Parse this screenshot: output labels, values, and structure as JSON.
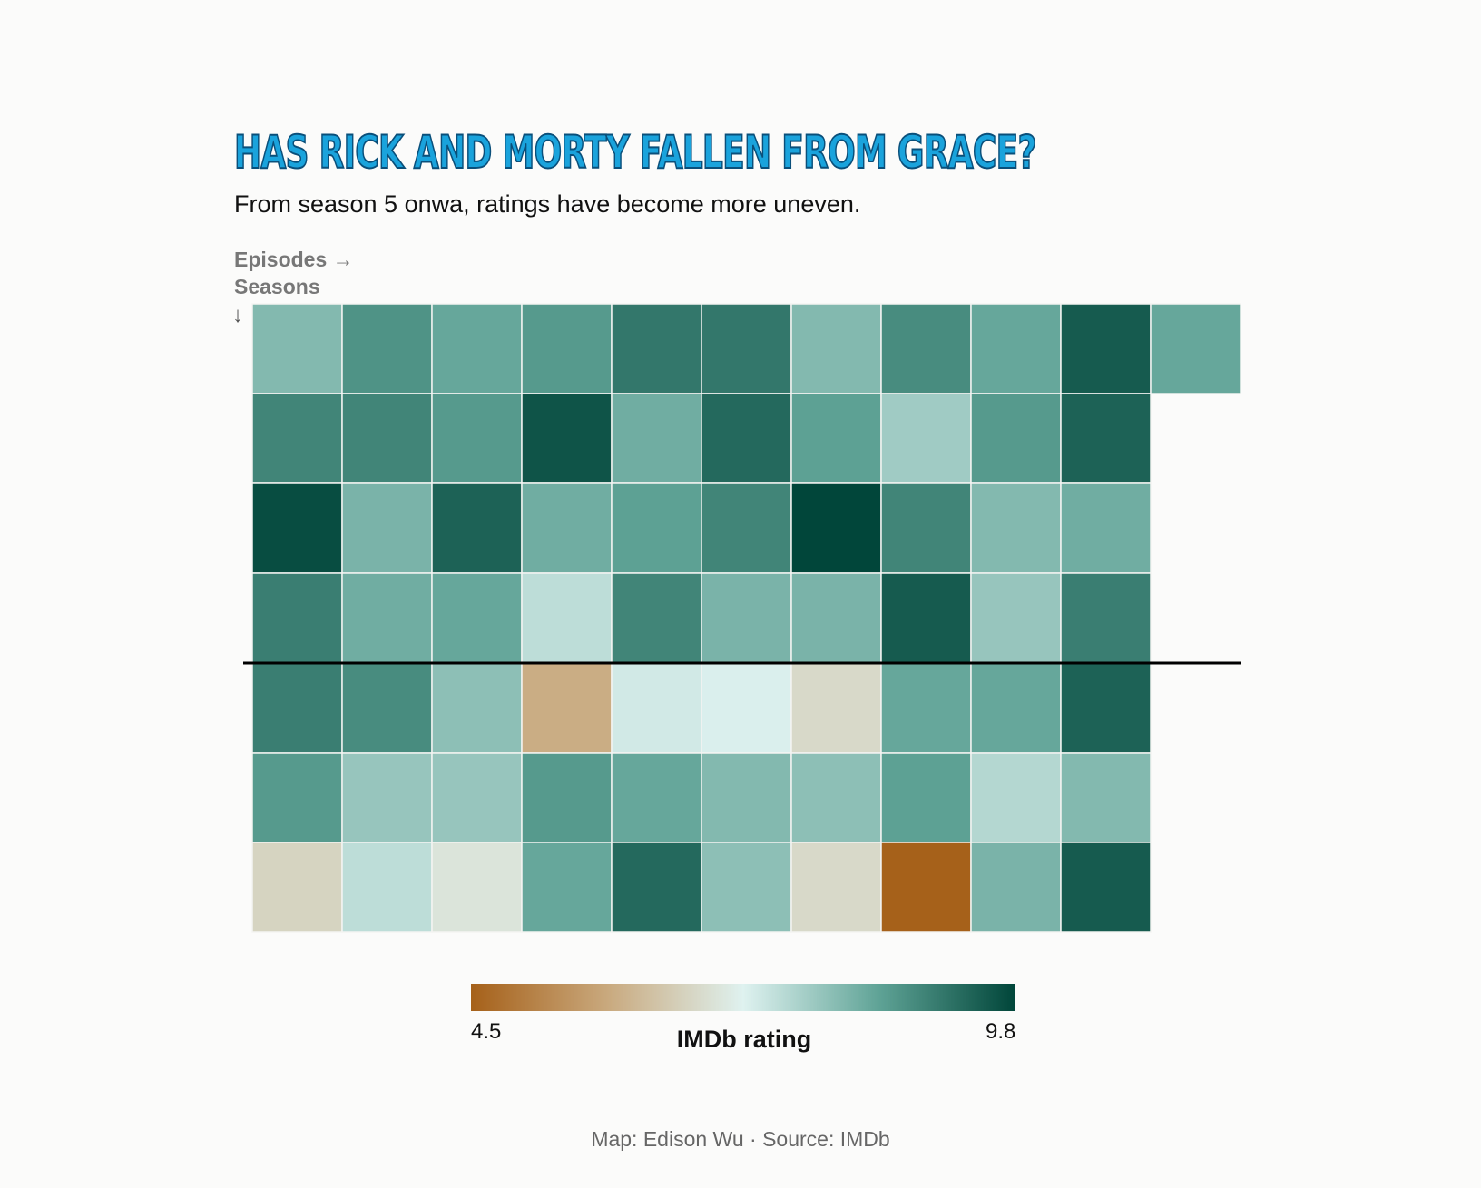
{
  "title": "Has Rick and Morty Fallen From Grace?",
  "subtitle": "From season 5 onwa, ratings have become more uneven.",
  "axis": {
    "episodes_label": "Episodes →",
    "seasons_label": "Seasons",
    "seasons_arrow": "↓"
  },
  "legend": {
    "title": "IMDb rating",
    "min_label": "4.5",
    "max_label": "9.8"
  },
  "credit": "Map: Edison Wu · Source: IMDb",
  "colors": {
    "title_fill": "#1aa3dc",
    "title_stroke": "#0a4f7a",
    "low": "#a6611a",
    "mid": "#dff2f0",
    "high": "#01463a",
    "divider": "#000000"
  },
  "chart_data": {
    "type": "heatmap",
    "xlabel": "Episodes →",
    "ylabel": "Seasons",
    "color_scale": {
      "min": 4.5,
      "max": 9.8,
      "label": "IMDb rating"
    },
    "rows": 7,
    "columns": 11,
    "divider_after_row": 4,
    "ratings": [
      [
        8.1,
        8.7,
        8.4,
        8.6,
        9.1,
        9.1,
        8.1,
        8.8,
        8.4,
        9.5,
        8.4
      ],
      [
        8.9,
        8.9,
        8.6,
        9.6,
        8.3,
        9.3,
        8.5,
        7.8,
        8.6,
        9.4
      ],
      [
        9.7,
        8.2,
        9.4,
        8.3,
        8.5,
        8.9,
        9.8,
        8.9,
        8.1,
        8.3
      ],
      [
        9.0,
        8.3,
        8.4,
        7.5,
        8.9,
        8.2,
        8.2,
        9.5,
        7.9,
        9.0
      ],
      [
        9.0,
        8.8,
        8.0,
        5.9,
        7.3,
        7.2,
        6.7,
        8.4,
        8.4,
        9.4
      ],
      [
        8.6,
        7.9,
        7.9,
        8.6,
        8.4,
        8.1,
        8.0,
        8.5,
        7.6,
        8.1
      ],
      [
        6.6,
        7.5,
        6.9,
        8.4,
        9.3,
        8.0,
        6.7,
        4.5,
        8.2,
        9.5
      ]
    ]
  }
}
